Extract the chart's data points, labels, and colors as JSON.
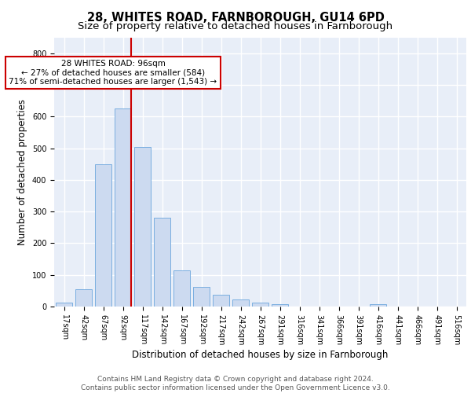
{
  "title1": "28, WHITES ROAD, FARNBOROUGH, GU14 6PD",
  "title2": "Size of property relative to detached houses in Farnborough",
  "xlabel": "Distribution of detached houses by size in Farnborough",
  "ylabel": "Number of detached properties",
  "bar_labels": [
    "17sqm",
    "42sqm",
    "67sqm",
    "92sqm",
    "117sqm",
    "142sqm",
    "167sqm",
    "192sqm",
    "217sqm",
    "242sqm",
    "267sqm",
    "291sqm",
    "316sqm",
    "341sqm",
    "366sqm",
    "391sqm",
    "416sqm",
    "441sqm",
    "466sqm",
    "491sqm",
    "516sqm"
  ],
  "bar_values": [
    12,
    55,
    450,
    625,
    505,
    280,
    115,
    62,
    37,
    22,
    12,
    8,
    0,
    0,
    0,
    0,
    8,
    0,
    0,
    0,
    0
  ],
  "bar_color": "#ccdaf0",
  "bar_edge_color": "#7aaee0",
  "vline_color": "#cc0000",
  "annotation_text": "28 WHITES ROAD: 96sqm\n← 27% of detached houses are smaller (584)\n71% of semi-detached houses are larger (1,543) →",
  "annotation_box_color": "white",
  "annotation_box_edge": "#cc0000",
  "ylim": [
    0,
    850
  ],
  "yticks": [
    0,
    100,
    200,
    300,
    400,
    500,
    600,
    700,
    800
  ],
  "background_color": "#e8eef8",
  "grid_color": "white",
  "footer_text": "Contains HM Land Registry data © Crown copyright and database right 2024.\nContains public sector information licensed under the Open Government Licence v3.0.",
  "title1_fontsize": 10.5,
  "title2_fontsize": 9.5,
  "tick_fontsize": 7,
  "ylabel_fontsize": 8.5,
  "xlabel_fontsize": 8.5,
  "footer_fontsize": 6.5,
  "annot_fontsize": 7.5
}
